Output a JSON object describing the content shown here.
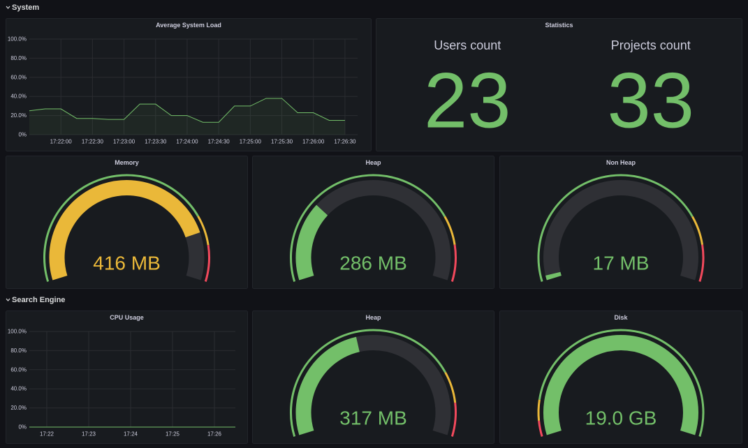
{
  "sections": [
    {
      "title": "System",
      "panels": [
        {
          "type": "line",
          "title": "Average System Load",
          "color": "#73bf69",
          "grid": true,
          "x": [
            "17:21:30",
            "17:21:45",
            "17:22:00",
            "17:22:15",
            "17:22:30",
            "17:22:45",
            "17:23:00",
            "17:23:15",
            "17:23:30",
            "17:23:45",
            "17:24:00",
            "17:24:15",
            "17:24:30",
            "17:24:45",
            "17:25:00",
            "17:25:15",
            "17:25:30",
            "17:25:45",
            "17:26:00",
            "17:26:15",
            "17:26:30"
          ],
          "values": [
            25,
            27,
            27,
            17,
            17,
            16,
            16,
            32,
            32,
            20,
            20,
            13,
            13,
            30,
            30,
            38,
            38,
            23,
            23,
            15,
            15
          ],
          "xlim": [
            "17:21:30",
            "17:26:42"
          ],
          "xticks": [
            "17:22:00",
            "17:22:30",
            "17:23:00",
            "17:23:30",
            "17:24:00",
            "17:24:30",
            "17:25:00",
            "17:25:30",
            "17:26:00",
            "17:26:30"
          ],
          "ylim": [
            0,
            100
          ],
          "yticks": [
            {
              "value": 0,
              "label": "0%"
            },
            {
              "value": 20,
              "label": "20.0%"
            },
            {
              "value": 40,
              "label": "40.0%"
            },
            {
              "value": 60,
              "label": "60.0%"
            },
            {
              "value": 80,
              "label": "80.0%"
            },
            {
              "value": 100,
              "label": "100.0%"
            }
          ]
        },
        {
          "type": "stat",
          "title": "Statistics",
          "color": "#73bf69",
          "stats": [
            {
              "label": "Users count",
              "value": 23
            },
            {
              "label": "Projects count",
              "value": 33
            }
          ]
        },
        {
          "type": "gauge",
          "title": "Memory",
          "value": 416,
          "value_label": "416 MB",
          "max": 500,
          "thresholds": [
            {
              "value": 0,
              "color": "#73bf69"
            },
            {
              "value": 390,
              "color": "#eab839"
            },
            {
              "value": 440,
              "color": "#f2495c"
            }
          ]
        },
        {
          "type": "gauge",
          "title": "Heap",
          "value": 286,
          "value_label": "286 MB",
          "max": 1024,
          "thresholds": [
            {
              "value": 0,
              "color": "#73bf69"
            },
            {
              "value": 800,
              "color": "#eab839"
            },
            {
              "value": 900,
              "color": "#f2495c"
            }
          ]
        },
        {
          "type": "gauge",
          "title": "Non Heap",
          "value": 17,
          "value_label": "17 MB",
          "max": 1024,
          "thresholds": [
            {
              "value": 0,
              "color": "#73bf69"
            },
            {
              "value": 800,
              "color": "#eab839"
            },
            {
              "value": 900,
              "color": "#f2495c"
            }
          ]
        }
      ]
    },
    {
      "title": "Search Engine",
      "panels": [
        {
          "type": "line",
          "title": "CPU Usage",
          "color": "#73bf69",
          "grid": true,
          "x": [
            "17:21:35",
            "17:22:00",
            "17:23:00",
            "17:24:00",
            "17:25:00",
            "17:26:00",
            "17:26:30"
          ],
          "values": [
            0,
            0,
            0,
            0,
            0,
            0,
            0
          ],
          "xlim": [
            "17:21:35",
            "17:26:30"
          ],
          "xticks": [
            {
              "value": "17:22:00",
              "label": "17:22"
            },
            {
              "value": "17:23:00",
              "label": "17:23"
            },
            {
              "value": "17:24:00",
              "label": "17:24"
            },
            {
              "value": "17:25:00",
              "label": "17:25"
            },
            {
              "value": "17:26:00",
              "label": "17:26"
            }
          ],
          "ylim": [
            0,
            100
          ],
          "yticks": [
            {
              "value": 0,
              "label": "0%"
            },
            {
              "value": 20,
              "label": "20.0%"
            },
            {
              "value": 40,
              "label": "40.0%"
            },
            {
              "value": 60,
              "label": "60.0%"
            },
            {
              "value": 80,
              "label": "80.0%"
            },
            {
              "value": 100,
              "label": "100.0%"
            }
          ]
        },
        {
          "type": "gauge",
          "title": "Heap",
          "value": 317,
          "value_label": "317 MB",
          "max": 720,
          "thresholds": [
            {
              "value": 0,
              "color": "#73bf69"
            },
            {
              "value": 565,
              "color": "#eab839"
            },
            {
              "value": 640,
              "color": "#f2495c"
            }
          ]
        },
        {
          "type": "gauge",
          "title": "Disk",
          "value": 19.0,
          "value_label": "19.0 GB",
          "max": 19,
          "thresholds": [
            {
              "value": 0,
              "color": "#f2495c"
            },
            {
              "value": 1,
              "color": "#eab839"
            },
            {
              "value": 2.3,
              "color": "#73bf69"
            }
          ]
        }
      ]
    }
  ]
}
